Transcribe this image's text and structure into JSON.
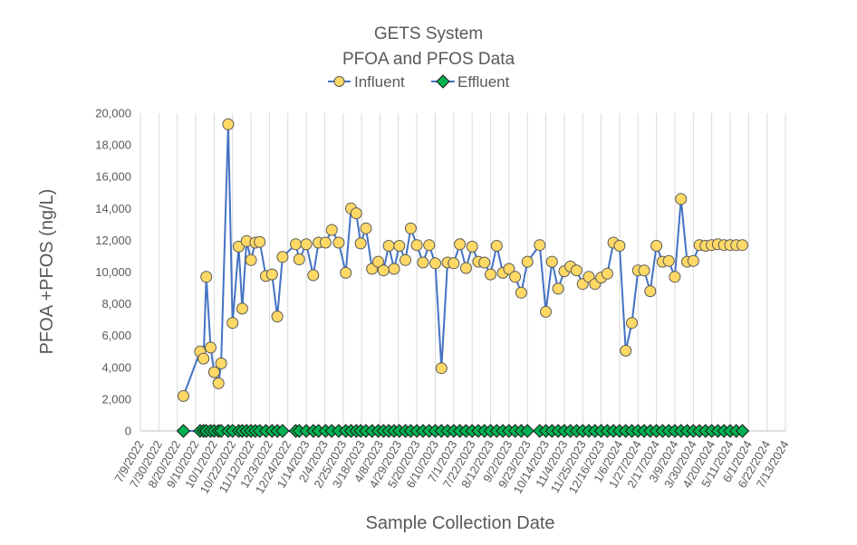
{
  "chart_data": {
    "type": "line",
    "title": [
      "GETS System",
      "PFOA and PFOS Data"
    ],
    "xlabel": "Sample Collection Date",
    "ylabel": "PFOA +PFOS (ng/L)",
    "ylim": [
      0,
      20000
    ],
    "yticks": [
      "0",
      "2,000",
      "4,000",
      "6,000",
      "8,000",
      "10,000",
      "12,000",
      "14,000",
      "16,000",
      "18,000",
      "20,000"
    ],
    "xlim": [
      "2022-07-09",
      "2024-07-13"
    ],
    "xticks": [
      "7/9/2022",
      "7/30/2022",
      "8/20/2022",
      "9/10/2022",
      "10/1/2022",
      "10/22/2022",
      "11/12/2022",
      "12/3/2022",
      "12/24/2022",
      "1/14/2023",
      "2/4/2023",
      "2/25/2023",
      "3/18/2023",
      "4/8/2023",
      "4/29/2023",
      "5/20/2023",
      "6/10/2023",
      "7/1/2023",
      "7/22/2023",
      "8/12/2023",
      "9/2/2023",
      "9/23/2023",
      "10/14/2023",
      "11/4/2023",
      "11/25/2023",
      "12/16/2023",
      "1/6/2024",
      "1/27/2024",
      "2/17/2024",
      "3/9/2024",
      "3/30/2024",
      "4/20/2024",
      "5/11/2024",
      "6/1/2024",
      "6/22/2024",
      "7/13/2024"
    ],
    "grid": "vertical",
    "legend": "top",
    "series": [
      {
        "name": "Influent",
        "color": "#4472C4",
        "marker": "circle",
        "marker_fill": "#FFD966",
        "x": [
          "2022-08-27",
          "2022-09-15",
          "2022-09-19",
          "2022-09-22",
          "2022-09-27",
          "2022-10-01",
          "2022-10-06",
          "2022-10-09",
          "2022-10-17",
          "2022-10-22",
          "2022-10-29",
          "2022-11-02",
          "2022-11-07",
          "2022-11-12",
          "2022-11-17",
          "2022-11-22",
          "2022-11-29",
          "2022-12-06",
          "2022-12-12",
          "2022-12-18",
          "2023-01-02",
          "2023-01-06",
          "2023-01-14",
          "2023-01-22",
          "2023-01-28",
          "2023-02-05",
          "2023-02-12",
          "2023-02-20",
          "2023-02-28",
          "2023-03-06",
          "2023-03-12",
          "2023-03-17",
          "2023-03-23",
          "2023-03-30",
          "2023-04-06",
          "2023-04-12",
          "2023-04-18",
          "2023-04-24",
          "2023-04-30",
          "2023-05-07",
          "2023-05-13",
          "2023-05-20",
          "2023-05-27",
          "2023-06-03",
          "2023-06-10",
          "2023-06-17",
          "2023-06-24",
          "2023-07-01",
          "2023-07-08",
          "2023-07-15",
          "2023-07-22",
          "2023-07-29",
          "2023-08-05",
          "2023-08-12",
          "2023-08-19",
          "2023-08-26",
          "2023-09-02",
          "2023-09-09",
          "2023-09-16",
          "2023-09-23",
          "2023-10-07",
          "2023-10-14",
          "2023-10-21",
          "2023-10-28",
          "2023-11-04",
          "2023-11-11",
          "2023-11-18",
          "2023-11-25",
          "2023-12-02",
          "2023-12-09",
          "2023-12-16",
          "2023-12-23",
          "2023-12-30",
          "2024-01-06",
          "2024-01-13",
          "2024-01-20",
          "2024-01-27",
          "2024-02-03",
          "2024-02-10",
          "2024-02-17",
          "2024-02-24",
          "2024-03-02",
          "2024-03-09",
          "2024-03-16",
          "2024-03-23",
          "2024-03-30",
          "2024-04-06",
          "2024-04-13",
          "2024-04-20",
          "2024-04-27",
          "2024-05-04",
          "2024-05-11",
          "2024-05-18",
          "2024-05-25"
        ],
        "y": [
          2200,
          5000,
          4550,
          9700,
          5250,
          3700,
          3000,
          4250,
          19300,
          6800,
          11600,
          7700,
          11950,
          10750,
          11850,
          11900,
          9750,
          9850,
          7200,
          10950,
          11750,
          10800,
          11750,
          9800,
          11850,
          11850,
          12650,
          11850,
          9950,
          14000,
          13700,
          11800,
          12750,
          10200,
          10650,
          10100,
          11650,
          10200,
          11650,
          10750,
          12750,
          11700,
          10600,
          11700,
          10550,
          3950,
          10600,
          10550,
          11750,
          10250,
          11600,
          10650,
          10600,
          9850,
          11650,
          9950,
          10200,
          9700,
          8700,
          10650,
          11700,
          7500,
          10650,
          8950,
          10050,
          10350,
          10100,
          9250,
          9700,
          9250,
          9650,
          9900,
          11850,
          11650,
          5050,
          6800,
          10100,
          10100,
          8800,
          11650,
          10650,
          10700,
          9700,
          14600,
          10650,
          10700,
          11700,
          11650,
          11700,
          11750,
          11700,
          11700,
          11700,
          11700
        ]
      },
      {
        "name": "Effluent",
        "color": "#00B050",
        "marker": "diamond",
        "marker_fill": "#00B050",
        "x": [
          "2022-08-27",
          "2022-09-15",
          "2022-09-19",
          "2022-09-22",
          "2022-09-27",
          "2022-10-01",
          "2022-10-06",
          "2022-10-09",
          "2022-10-17",
          "2022-10-22",
          "2022-10-29",
          "2022-11-02",
          "2022-11-07",
          "2022-11-12",
          "2022-11-17",
          "2022-11-22",
          "2022-11-29",
          "2022-12-06",
          "2022-12-12",
          "2022-12-18",
          "2023-01-02",
          "2023-01-06",
          "2023-01-14",
          "2023-01-22",
          "2023-01-28",
          "2023-02-05",
          "2023-02-12",
          "2023-02-20",
          "2023-02-28",
          "2023-03-06",
          "2023-03-12",
          "2023-03-17",
          "2023-03-23",
          "2023-03-30",
          "2023-04-06",
          "2023-04-12",
          "2023-04-18",
          "2023-04-24",
          "2023-04-30",
          "2023-05-07",
          "2023-05-13",
          "2023-05-20",
          "2023-05-27",
          "2023-06-03",
          "2023-06-10",
          "2023-06-17",
          "2023-06-24",
          "2023-07-01",
          "2023-07-08",
          "2023-07-15",
          "2023-07-22",
          "2023-07-29",
          "2023-08-05",
          "2023-08-12",
          "2023-08-19",
          "2023-08-26",
          "2023-09-02",
          "2023-09-09",
          "2023-09-16",
          "2023-09-23",
          "2023-10-07",
          "2023-10-14",
          "2023-10-21",
          "2023-10-28",
          "2023-11-04",
          "2023-11-11",
          "2023-11-18",
          "2023-11-25",
          "2023-12-02",
          "2023-12-09",
          "2023-12-16",
          "2023-12-23",
          "2023-12-30",
          "2024-01-06",
          "2024-01-13",
          "2024-01-20",
          "2024-01-27",
          "2024-02-03",
          "2024-02-10",
          "2024-02-17",
          "2024-02-24",
          "2024-03-02",
          "2024-03-09",
          "2024-03-16",
          "2024-03-23",
          "2024-03-30",
          "2024-04-06",
          "2024-04-13",
          "2024-04-20",
          "2024-04-27",
          "2024-05-04",
          "2024-05-11",
          "2024-05-18",
          "2024-05-25"
        ],
        "y": [
          0,
          0,
          0,
          0,
          0,
          0,
          0,
          0,
          0,
          0,
          0,
          0,
          0,
          0,
          0,
          0,
          0,
          0,
          0,
          0,
          0,
          0,
          0,
          0,
          0,
          0,
          0,
          0,
          0,
          0,
          0,
          0,
          0,
          0,
          0,
          0,
          0,
          0,
          0,
          0,
          0,
          0,
          0,
          0,
          0,
          0,
          0,
          0,
          0,
          0,
          0,
          0,
          0,
          0,
          0,
          0,
          0,
          0,
          0,
          0,
          0,
          0,
          0,
          0,
          0,
          0,
          0,
          0,
          0,
          0,
          0,
          0,
          0,
          0,
          0,
          0,
          0,
          0,
          0,
          0,
          0,
          0,
          0,
          0,
          0,
          0,
          0,
          0,
          0,
          0,
          0,
          0,
          0,
          0
        ]
      }
    ]
  }
}
